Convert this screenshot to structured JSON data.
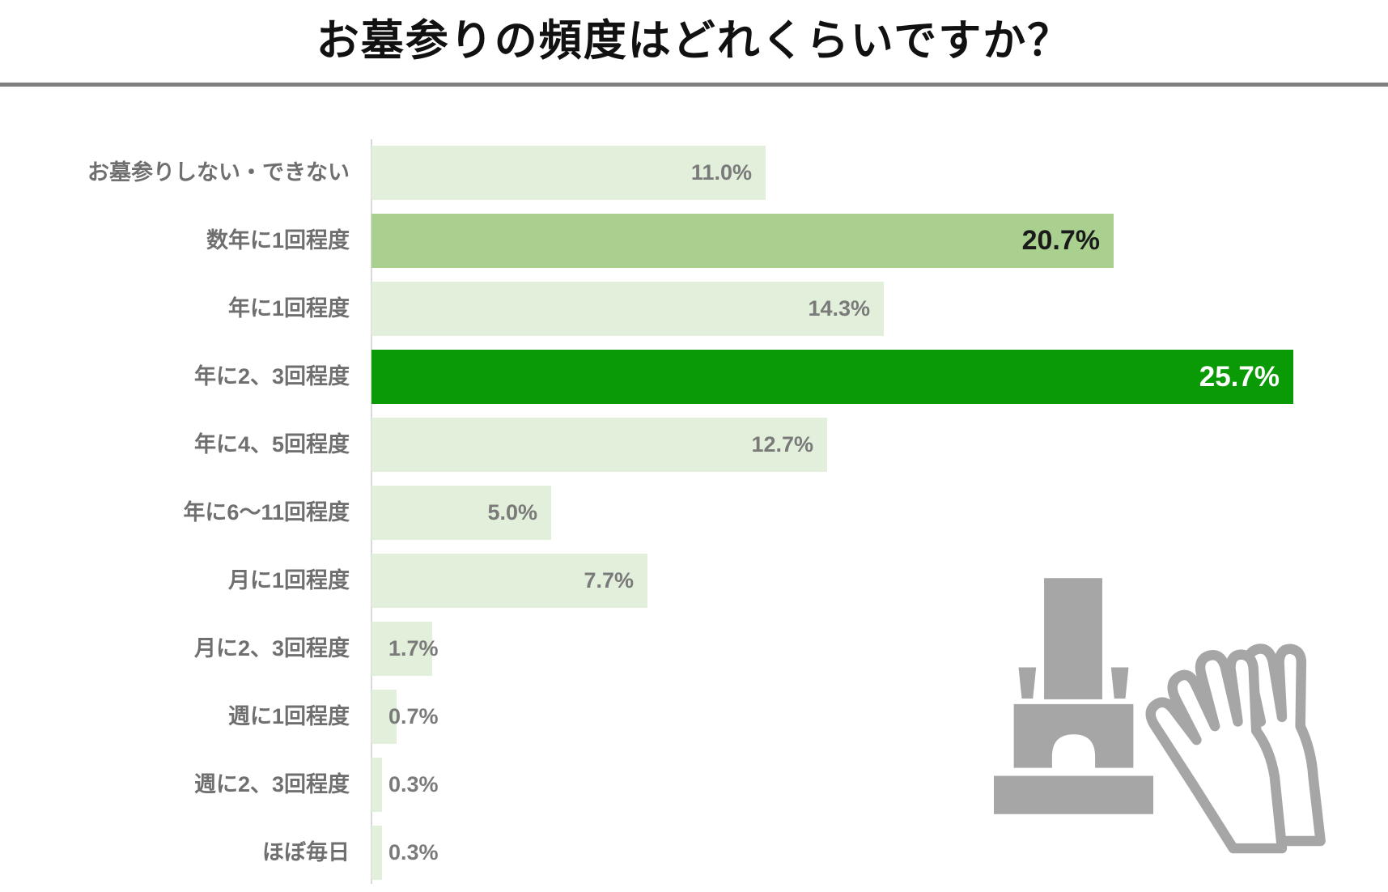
{
  "title": "お墓参りの頻度はどれくらいですか？",
  "chart_data": {
    "type": "bar",
    "orientation": "horizontal",
    "title": "お墓参りの頻度はどれくらいですか？",
    "categories": [
      "お墓参りしない・できない",
      "数年に1回程度",
      "年に1回程度",
      "年に2、3回程度",
      "年に4、5回程度",
      "年に6～11回程度",
      "月に1回程度",
      "月に2、3回程度",
      "週に1回程度",
      "週に2、3回程度",
      "ほぼ毎日"
    ],
    "values": [
      11.0,
      20.7,
      14.3,
      25.7,
      12.7,
      5.0,
      7.7,
      1.7,
      0.7,
      0.3,
      0.3
    ],
    "value_labels": [
      "11.0%",
      "20.7%",
      "14.3%",
      "25.7%",
      "12.7%",
      "5.0%",
      "7.7%",
      "1.7%",
      "0.7%",
      "0.3%",
      "0.3%"
    ],
    "highlight": [
      "none",
      "secondary",
      "none",
      "primary",
      "none",
      "none",
      "none",
      "none",
      "none",
      "none",
      "none"
    ],
    "xlim": [
      0,
      28.3
    ],
    "grid": false,
    "legend": false,
    "colors": {
      "bar": "#e2efda",
      "bar_secondary": "#a9d08e",
      "bar_primary": "#0a9a06",
      "value_text": "#7a7a7a",
      "value_text_secondary": "#1a1a1a",
      "value_text_primary": "#ffffff",
      "category_text": "#6f6f6f",
      "axis_line": "#d9d9d9",
      "divider": "#7f7f7f",
      "icon": "#a6a6a6"
    }
  },
  "icons": {
    "tombstone": "tombstone-icon",
    "praying_hands": "praying-hands-icon"
  }
}
